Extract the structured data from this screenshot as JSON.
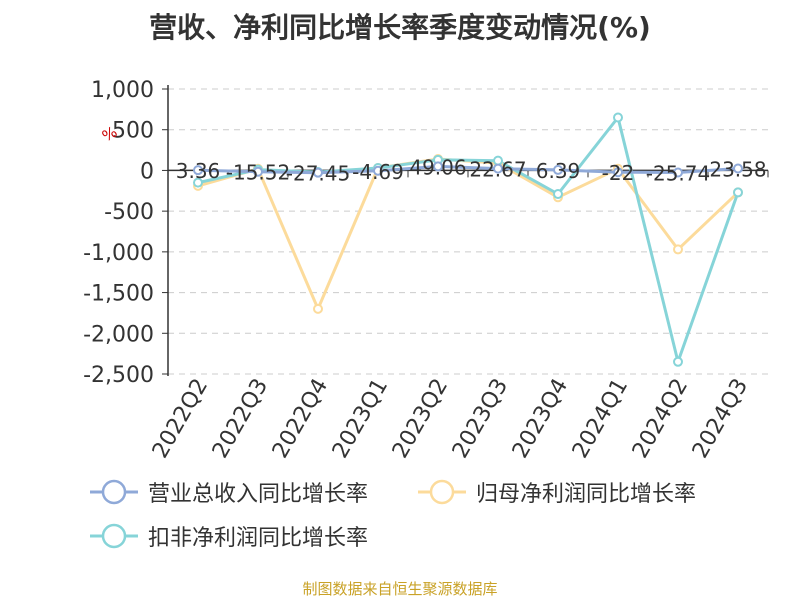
{
  "title": "营收、净利同比增长率季度变动情况(%)",
  "source": "制图数据来自恒生聚源数据库",
  "colors": {
    "series_0": "#8fa9d8",
    "series_1": "#fcdb9b",
    "series_2": "#86d4d8",
    "grid": "#cccccc",
    "axis": "#333333",
    "label": "#333333",
    "unit": "#cc0000",
    "source": "#c9a227"
  },
  "chart_data": {
    "type": "line",
    "ylabel": "%",
    "ylim": [
      -2500,
      1000
    ],
    "yticks": [
      1000,
      500,
      0,
      -500,
      -1000,
      -1500,
      -2000,
      -2500
    ],
    "ytick_labels": [
      "1,000",
      "500",
      "0",
      "-500",
      "-1,000",
      "-1,500",
      "-2,000",
      "-2,500"
    ],
    "grid": true,
    "legend_position": "bottom",
    "categories": [
      "2022Q2",
      "2022Q3",
      "2022Q4",
      "2023Q1",
      "2023Q2",
      "2023Q3",
      "2023Q4",
      "2024Q1",
      "2024Q2",
      "2024Q3"
    ],
    "series": [
      {
        "name": "营业总收入同比增长率",
        "values": [
          3.36,
          -15.52,
          -27.45,
          -4.69,
          49.06,
          22.67,
          6.39,
          -22,
          -25.74,
          23.58
        ],
        "labels": [
          "3.36",
          "-15.52",
          "-27.45",
          "-4.69",
          "49.06",
          "22.67",
          "6.39",
          "-22",
          "-25.74",
          "23.58"
        ]
      },
      {
        "name": "归母净利润同比增长率",
        "values": [
          -190,
          20,
          -1700,
          30,
          140,
          90,
          -330,
          20,
          -970,
          -270
        ]
      },
      {
        "name": "扣非净利润同比增长率",
        "values": [
          -150,
          10,
          -20,
          30,
          130,
          120,
          -290,
          650,
          -2350,
          -270
        ]
      }
    ]
  }
}
